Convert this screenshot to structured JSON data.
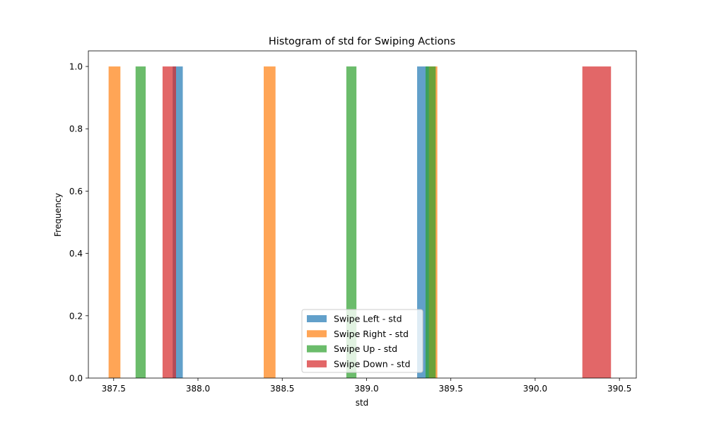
{
  "chart_data": {
    "type": "bar",
    "subtype": "overlaid-histogram",
    "title": "Histogram of std for Swiping Actions",
    "xlabel": "std",
    "ylabel": "Frequency",
    "xlim": [
      387.35,
      390.6
    ],
    "ylim": [
      0,
      1.05
    ],
    "xticks": [
      "387.5",
      "388.0",
      "388.5",
      "389.0",
      "389.5",
      "390.0",
      "390.5"
    ],
    "yticks": [
      "0.0",
      "0.2",
      "0.4",
      "0.6",
      "0.8",
      "1.0"
    ],
    "grid": false,
    "legend_position": "lower-center",
    "bar_opacity": 0.7,
    "series": [
      {
        "name": "Swipe Left - std",
        "color": "#1f77b4",
        "bins": [
          {
            "x0": 387.85,
            "x1": 387.91,
            "value": 1
          },
          {
            "x0": 389.3,
            "x1": 389.37,
            "value": 1
          }
        ]
      },
      {
        "name": "Swipe Right - std",
        "color": "#ff7f0e",
        "bins": [
          {
            "x0": 387.47,
            "x1": 387.54,
            "value": 1
          },
          {
            "x0": 388.39,
            "x1": 388.46,
            "value": 1
          },
          {
            "x0": 389.37,
            "x1": 389.42,
            "value": 1
          }
        ]
      },
      {
        "name": "Swipe Up - std",
        "color": "#2ca02c",
        "bins": [
          {
            "x0": 387.63,
            "x1": 387.69,
            "value": 1
          },
          {
            "x0": 388.88,
            "x1": 388.94,
            "value": 1
          },
          {
            "x0": 389.35,
            "x1": 389.41,
            "value": 1
          }
        ]
      },
      {
        "name": "Swipe Down - std",
        "color": "#d62728",
        "bins": [
          {
            "x0": 387.79,
            "x1": 387.87,
            "value": 1
          },
          {
            "x0": 390.28,
            "x1": 390.45,
            "value": 1
          }
        ]
      }
    ]
  }
}
